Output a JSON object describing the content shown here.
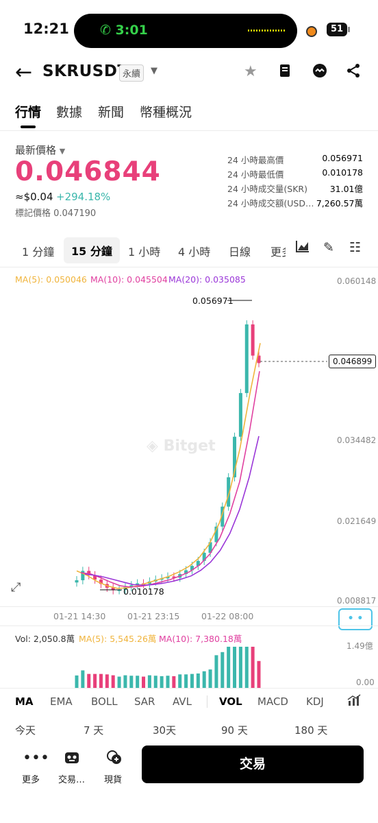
{
  "status_bar": {
    "time": "12:21",
    "call_timer": "3:01",
    "battery": "51"
  },
  "header": {
    "title": "SKRUSDT",
    "perpetual_badge": "永續",
    "icons": [
      "arrow-left-icon",
      "star-icon",
      "book-icon",
      "robot-icon",
      "share-icon"
    ]
  },
  "tabs": [
    {
      "label": "行情",
      "active": true
    },
    {
      "label": "數據",
      "active": false
    },
    {
      "label": "新聞",
      "active": false
    },
    {
      "label": "幣種概況",
      "active": false
    }
  ],
  "price": {
    "latest_label": "最新價格",
    "latest": "0.046844",
    "approx": "≈$0.04",
    "change": "+294.18%",
    "mark_price": "標記價格 0.047190"
  },
  "stats": [
    {
      "label": "24 小時最高價",
      "value": "0.056971"
    },
    {
      "label": "24 小時最低價",
      "value": "0.010178"
    },
    {
      "label": "24 小時成交量(SKR)",
      "value": "31.01億"
    },
    {
      "label": "24 小時成交額(USD…",
      "value": "7,260.57萬"
    }
  ],
  "intervals": [
    {
      "label": "1 分鐘",
      "active": false
    },
    {
      "label": "15 分鐘",
      "active": true
    },
    {
      "label": "1 小時",
      "active": false
    },
    {
      "label": "4 小時",
      "active": false
    },
    {
      "label": "日線",
      "active": false
    },
    {
      "label": "更多",
      "active": false
    }
  ],
  "chart_legend": {
    "ma5": "MA(5): 0.050046",
    "ma10": "MA(10): 0.045504",
    "ma20": "MA(20): 0.035085",
    "ma5_color": "#f0b43c",
    "ma10_color": "#e040a0",
    "ma20_color": "#9a36d8"
  },
  "chart_data": {
    "type": "line",
    "title": "",
    "y_axis_labels": [
      "0.060148",
      "0.034482",
      "0.021649",
      "0.008817"
    ],
    "x_axis_labels": [
      "01-21 14:30",
      "01-21 23:15",
      "01-22 08:00"
    ],
    "ylim": [
      0.008817,
      0.060148
    ],
    "annotations": {
      "high": "0.056971",
      "low": "0.010178",
      "current": "0.046899"
    },
    "series": [
      {
        "name": "MA(5)",
        "values": [
          0.0135,
          0.0128,
          0.0118,
          0.0111,
          0.0107,
          0.0108,
          0.0111,
          0.0116,
          0.0121,
          0.0126,
          0.0133,
          0.0142,
          0.0156,
          0.0178,
          0.0212,
          0.0262,
          0.033,
          0.042,
          0.05
        ]
      },
      {
        "name": "MA(10)",
        "values": [
          0.0132,
          0.013,
          0.0124,
          0.0117,
          0.0111,
          0.0109,
          0.011,
          0.0113,
          0.0117,
          0.0121,
          0.0127,
          0.0134,
          0.0145,
          0.0162,
          0.0188,
          0.0226,
          0.0278,
          0.036,
          0.0455
        ]
      },
      {
        "name": "MA(20)",
        "values": [
          0.013,
          0.0128,
          0.0125,
          0.0121,
          0.0117,
          0.0113,
          0.0112,
          0.0113,
          0.0115,
          0.0118,
          0.0122,
          0.0127,
          0.0136,
          0.0149,
          0.0168,
          0.0195,
          0.0233,
          0.0285,
          0.0351
        ]
      }
    ],
    "candles_close": [
      0.012,
      0.0135,
      0.0128,
      0.0121,
      0.0114,
      0.0108,
      0.0104,
      0.0105,
      0.0109,
      0.0112,
      0.0115,
      0.0114,
      0.0118,
      0.0121,
      0.0123,
      0.0126,
      0.0124,
      0.013,
      0.0136,
      0.0143,
      0.0151,
      0.0164,
      0.0181,
      0.0206,
      0.0238,
      0.0285,
      0.035,
      0.042,
      0.053,
      0.048,
      0.0468
    ]
  },
  "volume": {
    "vol": "Vol: 2,050.8萬",
    "ma5": "MA(5): 5,545.26萬",
    "ma10": "MA(10): 7,380.18萬",
    "axis_top": "1.49億",
    "axis_bottom": "0.00"
  },
  "indicators": [
    {
      "label": "MA",
      "active": true
    },
    {
      "label": "EMA",
      "active": false
    },
    {
      "label": "BOLL",
      "active": false
    },
    {
      "label": "SAR",
      "active": false
    },
    {
      "label": "AVL",
      "active": false
    },
    {
      "label": "VOL",
      "active": true
    },
    {
      "label": "MACD",
      "active": false
    },
    {
      "label": "KDJ",
      "active": false
    }
  ],
  "ranges": [
    "今天",
    "7 天",
    "30天",
    "90 天",
    "180 天"
  ],
  "bottom": {
    "more": "更多",
    "bot": "交易…",
    "spot": "現貨",
    "trade": "交易"
  }
}
